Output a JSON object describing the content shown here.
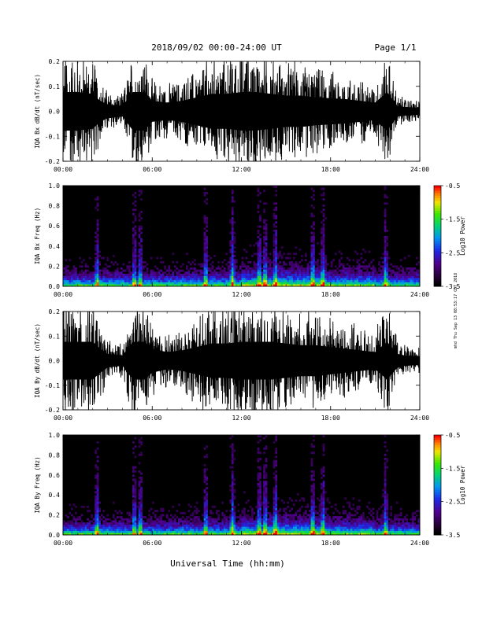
{
  "header": {
    "date_range": "2018/09/02  00:00-24:00 UT",
    "page": "Page 1/1"
  },
  "side_stamp": "mhd Thu Sep 13 08:53:17 CDT 2018",
  "xlabel": "Universal Time (hh:mm)",
  "chart_data": [
    {
      "type": "line",
      "title": "",
      "ylabel": "IQA Bx dB/dt (nT/sec)",
      "xlim": [
        "00:00",
        "24:00"
      ],
      "x_ticks": [
        "00:00",
        "06:00",
        "12:00",
        "18:00",
        "24:00"
      ],
      "ylim": [
        -0.2,
        0.2
      ],
      "y_ticks": [
        "0.2",
        "0.1",
        "0.0",
        "-0.1",
        "-0.2"
      ],
      "envelope": {
        "hours": [
          0,
          1,
          2,
          2.5,
          3,
          4,
          4.7,
          5.5,
          6,
          7,
          8,
          9,
          10,
          11,
          12,
          13,
          14,
          15,
          16,
          17,
          18,
          19,
          20,
          21,
          21.8,
          22.5,
          23,
          24
        ],
        "amplitude": [
          0.22,
          0.22,
          0.2,
          0.12,
          0.08,
          0.06,
          0.22,
          0.22,
          0.12,
          0.1,
          0.12,
          0.16,
          0.2,
          0.2,
          0.22,
          0.22,
          0.2,
          0.18,
          0.18,
          0.16,
          0.15,
          0.14,
          0.12,
          0.1,
          0.22,
          0.06,
          0.05,
          0.04
        ]
      }
    },
    {
      "type": "heatmap",
      "ylabel": "IQA Bx Freq (Hz)",
      "xlim": [
        "00:00",
        "24:00"
      ],
      "x_ticks": [
        "00:00",
        "06:00",
        "12:00",
        "18:00",
        "24:00"
      ],
      "ylim": [
        0.0,
        1.0
      ],
      "y_ticks": [
        "1.0",
        "0.8",
        "0.6",
        "0.4",
        "0.2",
        "0.0"
      ],
      "colorbar": {
        "label": "Log10 Power",
        "range": [
          -3.5,
          -0.5
        ],
        "ticks": [
          "-0.5",
          "-1.5",
          "-2.5",
          "-3.5"
        ]
      },
      "vertical_bands_hours": [
        2.3,
        4.8,
        5.2,
        9.6,
        11.4,
        13.2,
        13.6,
        14.3,
        16.8,
        17.5,
        21.7
      ]
    },
    {
      "type": "line",
      "title": "",
      "ylabel": "IQA By dB/dt (nT/sec)",
      "xlim": [
        "00:00",
        "24:00"
      ],
      "x_ticks": [
        "00:00",
        "06:00",
        "12:00",
        "18:00",
        "24:00"
      ],
      "ylim": [
        -0.2,
        0.2
      ],
      "y_ticks": [
        "0.2",
        "0.1",
        "0.0",
        "-0.1",
        "-0.2"
      ],
      "envelope": {
        "hours": [
          0,
          1,
          2,
          2.5,
          3,
          4,
          4.7,
          5.5,
          6,
          7,
          8,
          9,
          10,
          11,
          12,
          13,
          14,
          15,
          16,
          17,
          18,
          19,
          20,
          21,
          21.8,
          22.5,
          23,
          24
        ],
        "amplitude": [
          0.22,
          0.22,
          0.22,
          0.14,
          0.08,
          0.06,
          0.22,
          0.22,
          0.14,
          0.1,
          0.12,
          0.16,
          0.2,
          0.2,
          0.22,
          0.22,
          0.22,
          0.2,
          0.18,
          0.18,
          0.16,
          0.14,
          0.12,
          0.1,
          0.22,
          0.08,
          0.06,
          0.05
        ]
      }
    },
    {
      "type": "heatmap",
      "ylabel": "IQA By Freq (Hz)",
      "xlim": [
        "00:00",
        "24:00"
      ],
      "x_ticks": [
        "00:00",
        "06:00",
        "12:00",
        "18:00",
        "24:00"
      ],
      "ylim": [
        0.0,
        1.0
      ],
      "y_ticks": [
        "1.0",
        "0.8",
        "0.6",
        "0.4",
        "0.2",
        "0.0"
      ],
      "colorbar": {
        "label": "Log10 Power",
        "range": [
          -3.5,
          -0.5
        ],
        "ticks": [
          "-0.5",
          "-1.5",
          "-2.5",
          "-3.5"
        ]
      },
      "vertical_bands_hours": [
        2.3,
        4.8,
        5.2,
        9.6,
        11.4,
        13.2,
        13.6,
        14.3,
        16.8,
        17.5,
        21.7
      ]
    }
  ]
}
